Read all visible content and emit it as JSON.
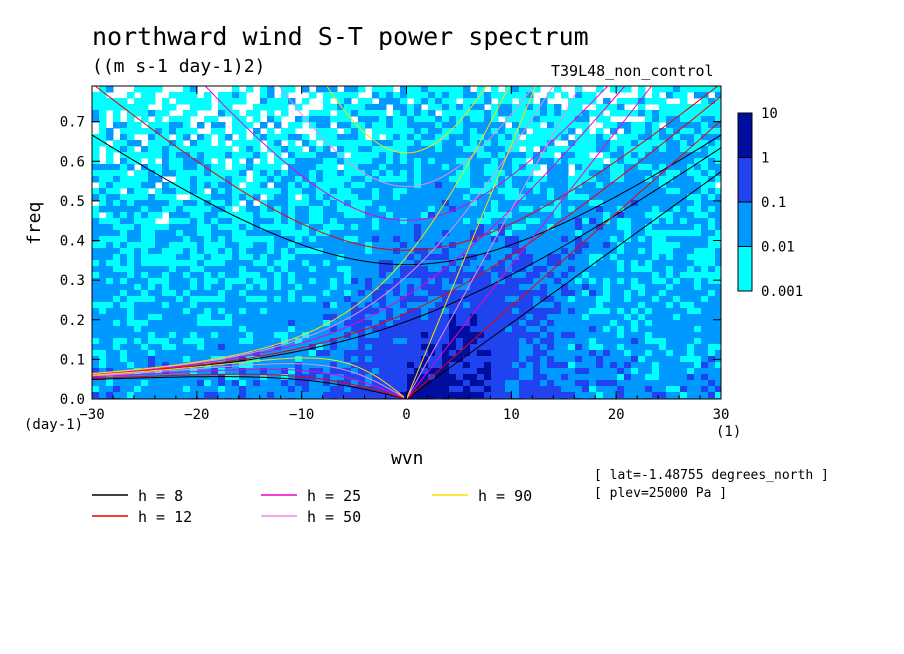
{
  "header": {
    "title": "northward wind S-T power spectrum",
    "subtitle": "((m s-1 day-1)2)",
    "dataset": "T39L48_non_control"
  },
  "axes": {
    "ylabel": "freq",
    "xlabel": "wvn",
    "yunit": "(day-1)",
    "xunit": "(1)"
  },
  "meta": {
    "line1": "[ lat=-1.48755 degrees_north ]",
    "line2": "[ plev=25000 Pa ]"
  },
  "chart_data": {
    "type": "heatmap",
    "title": "northward wind S-T power spectrum",
    "subtitle": "((m s-1 day-1)2)",
    "xlabel": "wvn",
    "ylabel": "freq",
    "xlim": [
      -30,
      30
    ],
    "ylim": [
      0,
      0.79
    ],
    "xticks": [
      -30,
      -20,
      -10,
      0,
      10,
      20,
      30
    ],
    "yticks": [
      0.0,
      0.1,
      0.2,
      0.3,
      0.4,
      0.5,
      0.6,
      0.7
    ],
    "colorbar": {
      "levels": [
        "0.001",
        "0.01",
        "0.1",
        "1",
        "10"
      ],
      "colors": [
        "#00ffff",
        "#0099ff",
        "#1f43ee",
        "#000ea0",
        "#5514ab"
      ]
    },
    "dispersion_curves": [
      {
        "name": "h =  8",
        "h": 8,
        "color": "#000000"
      },
      {
        "name": "h = 12",
        "h": 12,
        "color": "#ee0000"
      },
      {
        "name": "h = 25",
        "h": 25,
        "color": "#ee00cc"
      },
      {
        "name": "h = 50",
        "h": 50,
        "color": "#ee88ee"
      },
      {
        "name": "h = 90",
        "h": 90,
        "color": "#ffdd00"
      }
    ]
  }
}
